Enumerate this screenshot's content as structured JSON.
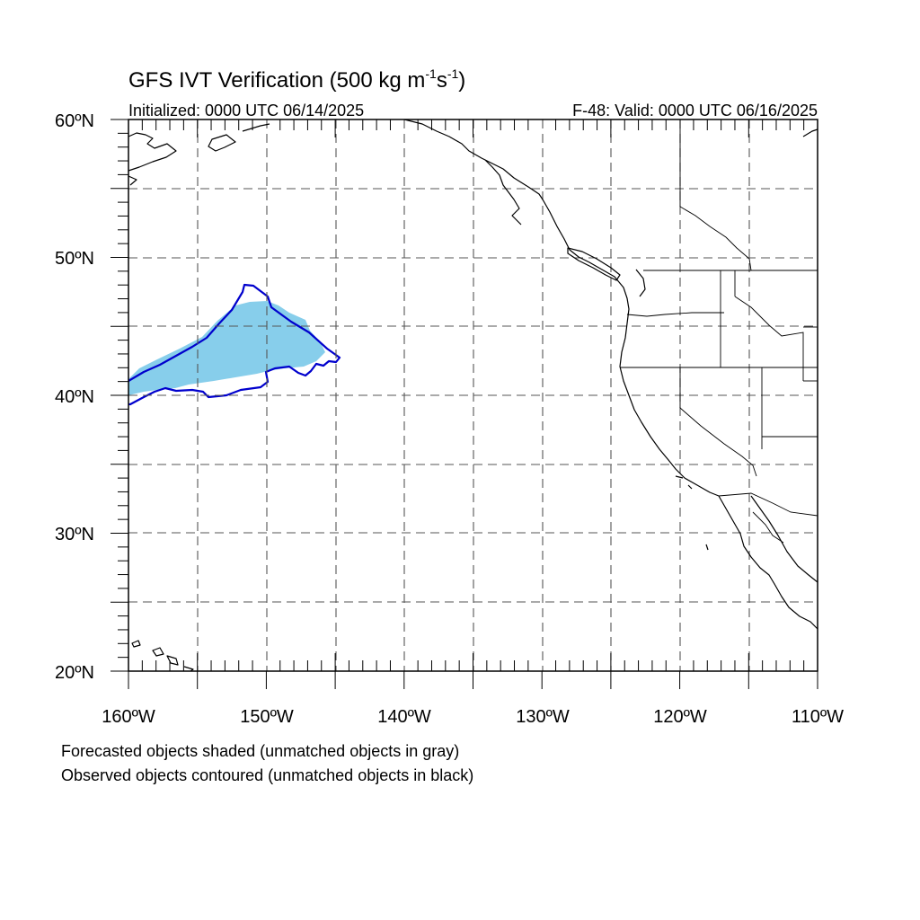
{
  "title": {
    "main": "GFS IVT Verification (500 kg m",
    "exp1": "-1",
    "mid": "s",
    "exp2": "-1",
    "end": ")"
  },
  "init_label": "Initialized: 0000 UTC 06/14/2025",
  "valid_label": "F-48: Valid: 0000 UTC 06/16/2025",
  "lat_labels": [
    "60ºN",
    "50ºN",
    "40ºN",
    "30ºN",
    "20ºN"
  ],
  "lon_labels": [
    "160ºW",
    "150ºW",
    "140ºW",
    "130ºW",
    "120ºW",
    "110ºW"
  ],
  "footnote": {
    "line1": "Forecasted objects shaded (unmatched objects in gray)",
    "line2": "Observed objects contoured (unmatched objects in black)"
  },
  "colors": {
    "forecast_fill": "#87ceeb",
    "observed_contour": "#0000cd",
    "coastline": "#000000",
    "grid": "#555555"
  }
}
